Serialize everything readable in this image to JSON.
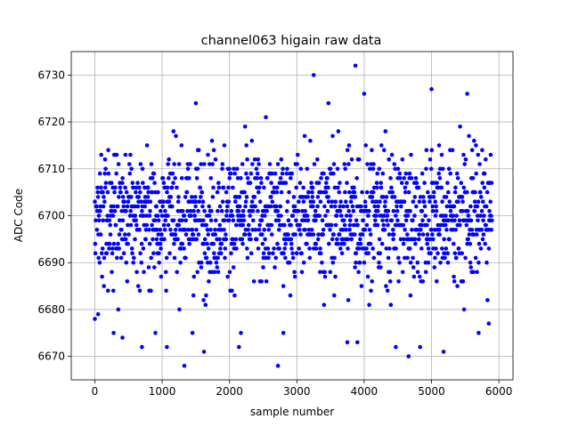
{
  "chart_data": {
    "type": "scatter",
    "title": "channel063 higain raw data",
    "xlabel": "sample number",
    "ylabel": "ADC Code",
    "xlim": [
      -350,
      6210
    ],
    "ylim": [
      6665,
      6735
    ],
    "xticks": [
      0,
      1000,
      2000,
      3000,
      4000,
      5000,
      6000
    ],
    "yticks": [
      6670,
      6680,
      6690,
      6700,
      6710,
      6720,
      6730
    ],
    "grid": true,
    "marker_color": "#0000ff",
    "n_samples": 5900,
    "value_range_typical": [
      6684,
      6716
    ],
    "center_value": 6700,
    "outliers": [
      {
        "x": 3250,
        "y": 6730
      },
      {
        "x": 3870,
        "y": 6732
      },
      {
        "x": 4000,
        "y": 6726
      },
      {
        "x": 5000,
        "y": 6727
      },
      {
        "x": 5530,
        "y": 6726
      },
      {
        "x": 1500,
        "y": 6724
      },
      {
        "x": 3470,
        "y": 6724
      },
      {
        "x": 1330,
        "y": 6668
      },
      {
        "x": 2720,
        "y": 6668
      },
      {
        "x": 4660,
        "y": 6670
      },
      {
        "x": 5180,
        "y": 6671
      },
      {
        "x": 1620,
        "y": 6671
      },
      {
        "x": 3900,
        "y": 6673
      },
      {
        "x": 2140,
        "y": 6672
      },
      {
        "x": 700,
        "y": 6672
      },
      {
        "x": 1070,
        "y": 6672
      },
      {
        "x": 410,
        "y": 6674
      },
      {
        "x": 0,
        "y": 6678
      },
      {
        "x": 50,
        "y": 6679
      },
      {
        "x": 280,
        "y": 6675
      },
      {
        "x": 900,
        "y": 6675
      },
      {
        "x": 1450,
        "y": 6675
      },
      {
        "x": 2170,
        "y": 6675
      },
      {
        "x": 2800,
        "y": 6675
      },
      {
        "x": 3750,
        "y": 6673
      },
      {
        "x": 4470,
        "y": 6672
      },
      {
        "x": 4830,
        "y": 6672
      },
      {
        "x": 5700,
        "y": 6675
      },
      {
        "x": 5850,
        "y": 6677
      }
    ]
  }
}
